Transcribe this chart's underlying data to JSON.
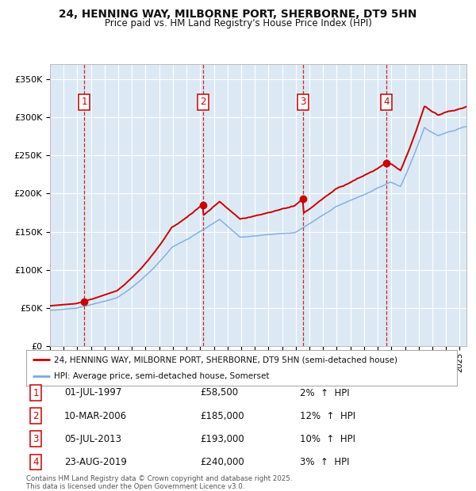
{
  "title1": "24, HENNING WAY, MILBORNE PORT, SHERBORNE, DT9 5HN",
  "title2": "Price paid vs. HM Land Registry's House Price Index (HPI)",
  "background_color": "#ffffff",
  "plot_bg_color": "#dce9f5",
  "red_line_color": "#cc0000",
  "blue_line_color": "#7aaadd",
  "sale_marker_color": "#cc0000",
  "vline_color": "#cc0000",
  "grid_color": "#ffffff",
  "legend_label_red": "24, HENNING WAY, MILBORNE PORT, SHERBORNE, DT9 5HN (semi-detached house)",
  "legend_label_blue": "HPI: Average price, semi-detached house, Somerset",
  "sales": [
    {
      "num": 1,
      "date_x": 1997.5,
      "price": 58500,
      "label": "01-JUL-1997",
      "pct": "2%",
      "dir": "↑"
    },
    {
      "num": 2,
      "date_x": 2006.19,
      "price": 185000,
      "label": "10-MAR-2006",
      "pct": "12%",
      "dir": "↑"
    },
    {
      "num": 3,
      "date_x": 2013.51,
      "price": 193000,
      "label": "05-JUL-2013",
      "pct": "10%",
      "dir": "↑"
    },
    {
      "num": 4,
      "date_x": 2019.64,
      "price": 240000,
      "label": "23-AUG-2019",
      "pct": "3%",
      "dir": "↑"
    }
  ],
  "footnote": "Contains HM Land Registry data © Crown copyright and database right 2025.\nThis data is licensed under the Open Government Licence v3.0.",
  "ylim": [
    0,
    370000
  ],
  "xlim_start": 1995.0,
  "xlim_end": 2025.5
}
